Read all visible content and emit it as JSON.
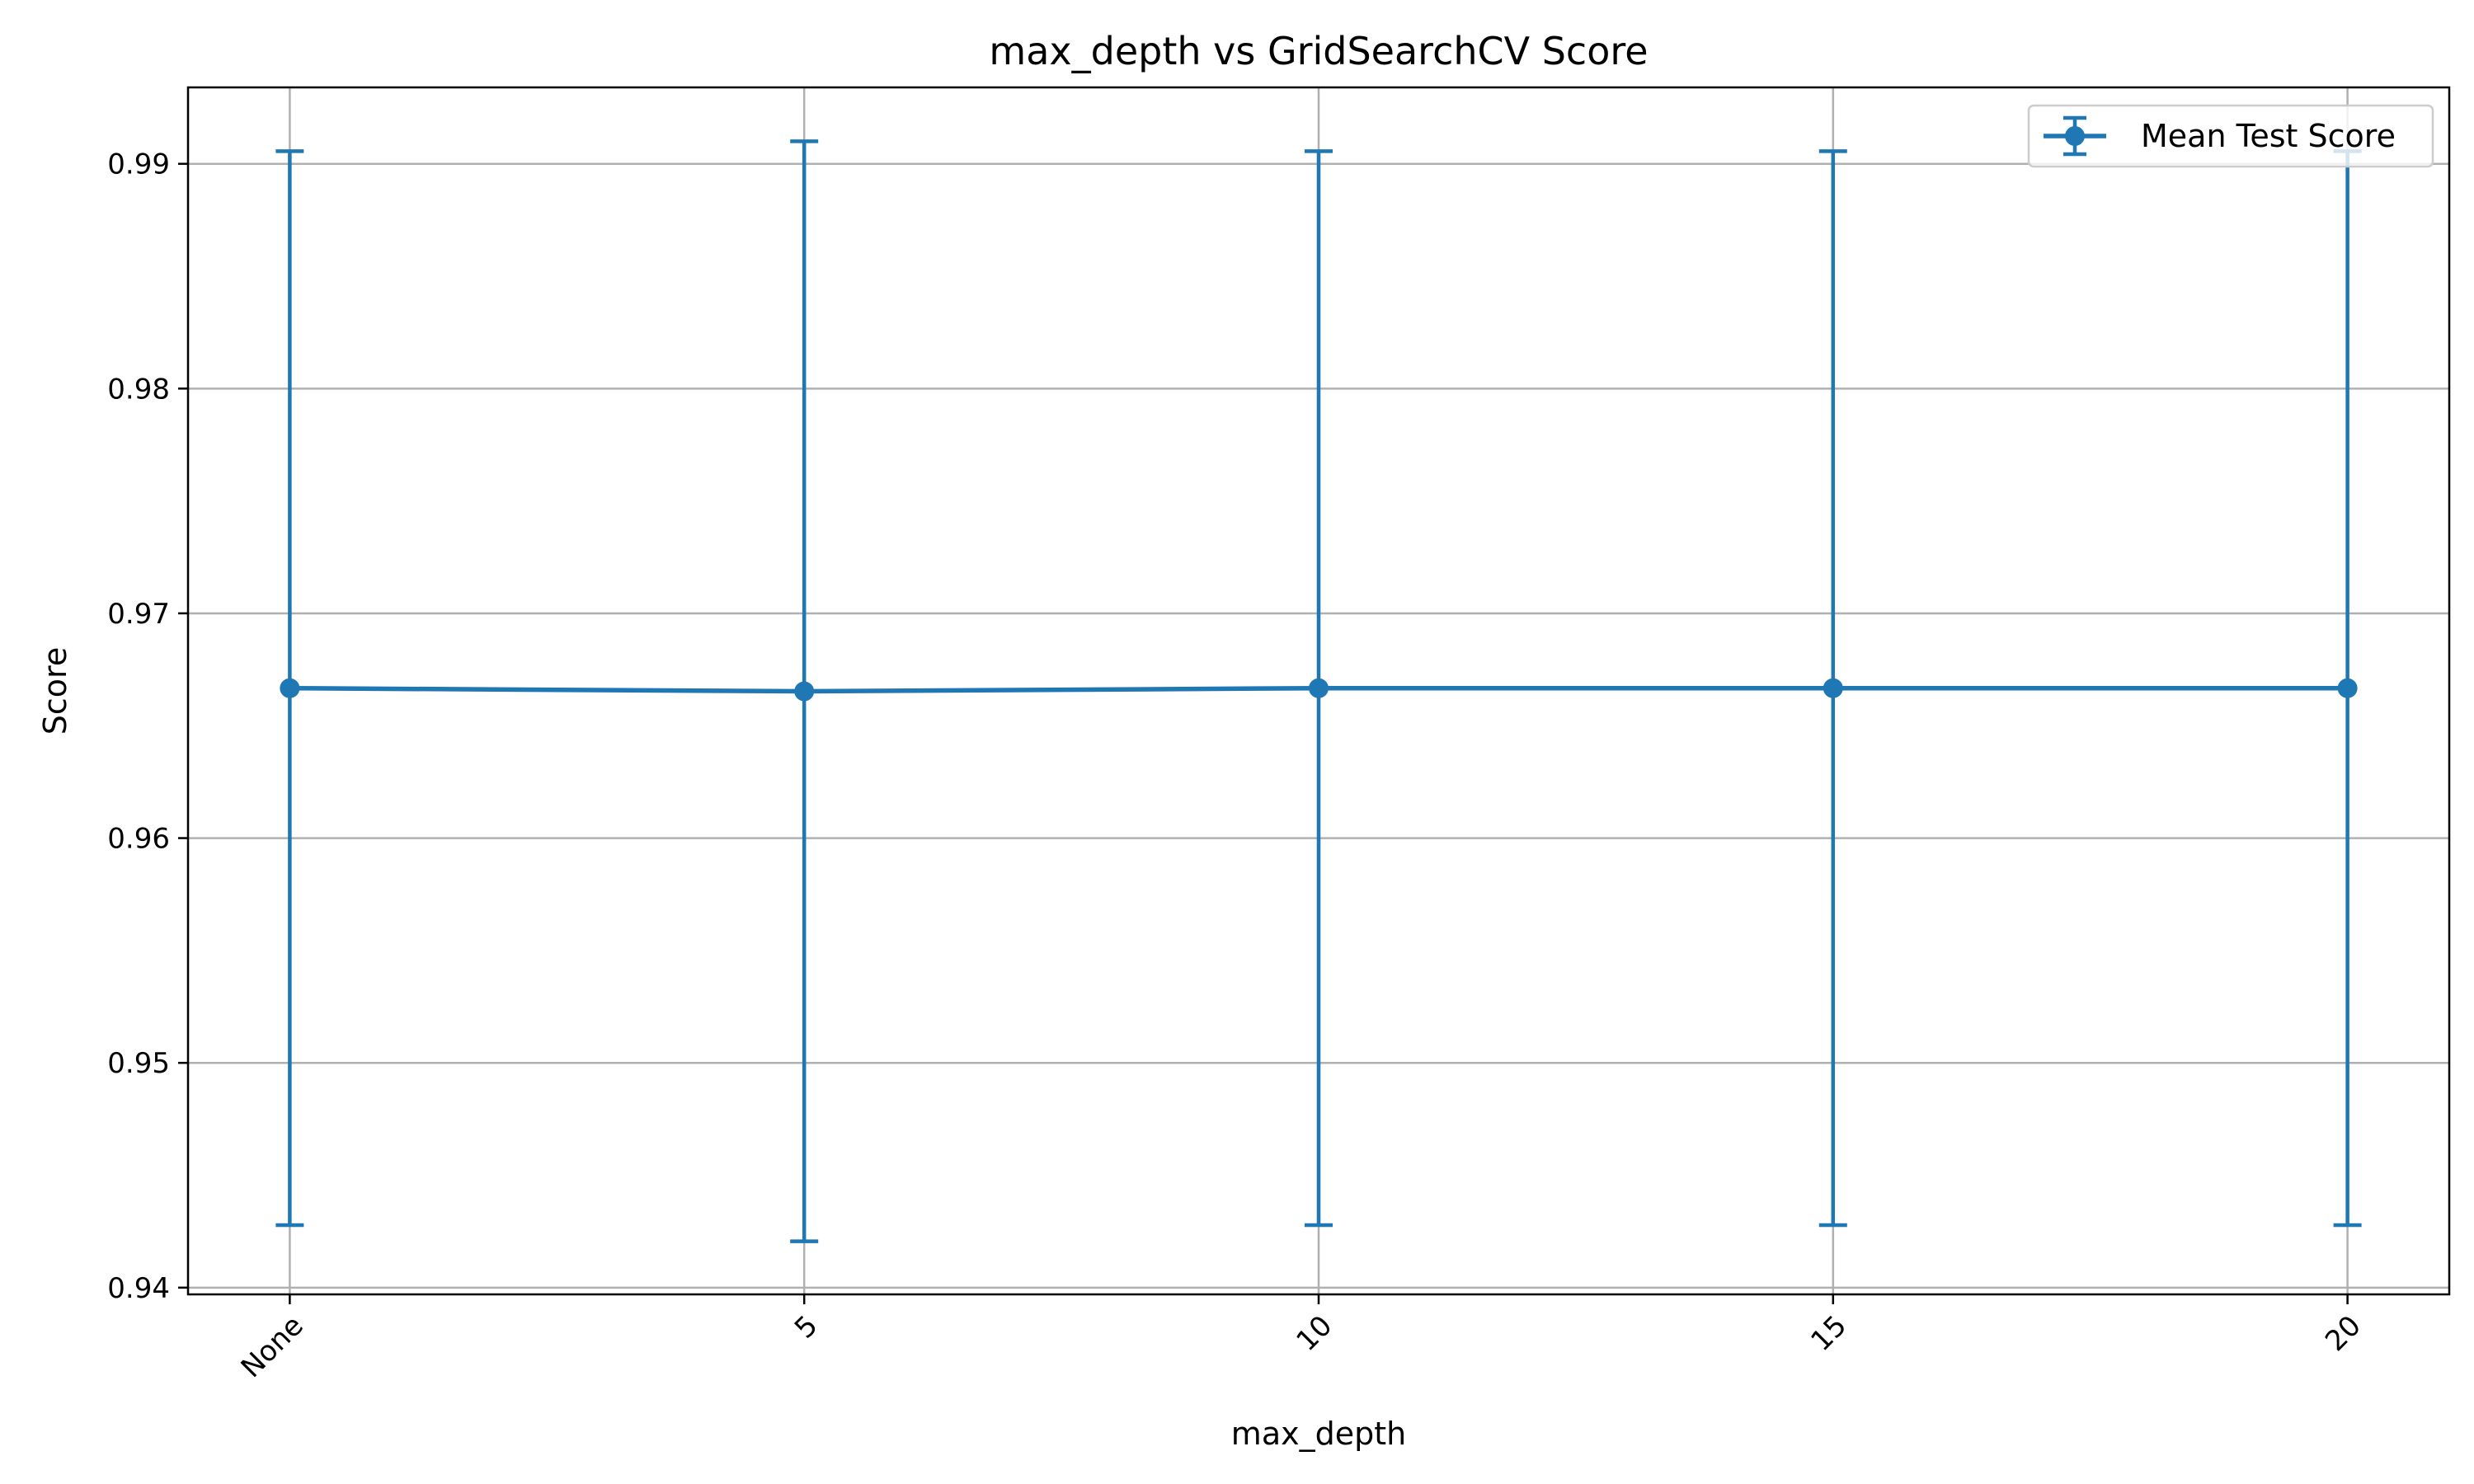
{
  "chart_data": {
    "type": "line",
    "title": "max_depth vs GridSearchCV Score",
    "xlabel": "max_depth",
    "ylabel": "Score",
    "categories": [
      "None",
      "5",
      "10",
      "15",
      "20"
    ],
    "y_ticks": [
      "0.94",
      "0.95",
      "0.96",
      "0.97",
      "0.98",
      "0.99"
    ],
    "ylim": [
      0.9397,
      0.9934
    ],
    "grid": true,
    "legend_position": "top-right",
    "color": "#1f77b4",
    "series": [
      {
        "name": "Mean Test Score",
        "values": [
          0.96667,
          0.96653,
          0.96667,
          0.96667,
          0.96667
        ],
        "error": [
          0.02389,
          0.02447,
          0.02389,
          0.02389,
          0.02389
        ]
      }
    ]
  }
}
